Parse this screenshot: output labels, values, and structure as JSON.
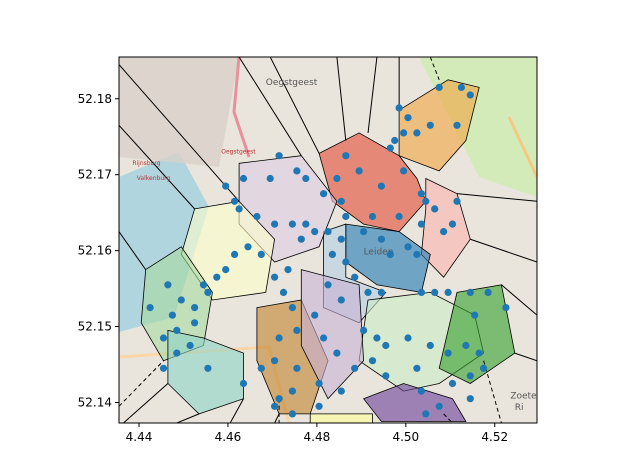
{
  "chart_data": {
    "type": "scatter",
    "title": "",
    "xlabel": "",
    "ylabel": "",
    "xlim": [
      4.4355,
      4.5295
    ],
    "ylim": [
      52.1373,
      52.1855
    ],
    "x_ticks": [
      "4.44",
      "4.46",
      "4.48",
      "4.50",
      "4.52"
    ],
    "x_tick_values": [
      4.44,
      4.46,
      4.48,
      4.5,
      4.52
    ],
    "y_ticks": [
      "52.14",
      "52.15",
      "52.16",
      "52.17",
      "52.18"
    ],
    "y_tick_values": [
      52.14,
      52.15,
      52.16,
      52.17,
      52.18
    ],
    "grid": false,
    "point_color": "#1f77b4",
    "map_labels": [
      {
        "text": "Oegstgeest",
        "x": 4.4685,
        "y": 52.1818
      },
      {
        "text": "Oegstgeest",
        "x": 4.4585,
        "y": 52.1728
      },
      {
        "text": "Rijnsburg",
        "x": 4.4385,
        "y": 52.1713
      },
      {
        "text": "Valkenburg",
        "x": 4.4395,
        "y": 52.1693
      },
      {
        "text": "Leiden",
        "x": 4.4905,
        "y": 52.1595
      },
      {
        "text": "Zoete",
        "x": 4.5235,
        "y": 52.1405
      },
      {
        "text": "Ri",
        "x": 4.5245,
        "y": 52.139
      }
    ],
    "regions": [
      {
        "color": "#f1a340",
        "points": [
          [
            4.4985,
            52.1785
          ],
          [
            4.5095,
            52.1825
          ],
          [
            4.5165,
            52.1815
          ],
          [
            4.5135,
            52.1745
          ],
          [
            4.5075,
            52.1705
          ],
          [
            4.4985,
            52.1725
          ]
        ]
      },
      {
        "color": "#e34a33",
        "points": [
          [
            4.4805,
            52.1728
          ],
          [
            4.4895,
            52.1755
          ],
          [
            4.4985,
            52.1725
          ],
          [
            4.5025,
            52.1695
          ],
          [
            4.5045,
            52.1665
          ],
          [
            4.4985,
            52.1625
          ],
          [
            4.4905,
            52.1635
          ],
          [
            4.4835,
            52.1665
          ]
        ]
      },
      {
        "color": "#fbb4ae",
        "points": [
          [
            4.5045,
            52.1695
          ],
          [
            4.5115,
            52.1675
          ],
          [
            4.5145,
            52.1615
          ],
          [
            4.5085,
            52.1565
          ],
          [
            4.5035,
            52.1595
          ],
          [
            4.5045,
            52.1655
          ]
        ]
      },
      {
        "color": "#1f78b4",
        "points": [
          [
            4.4865,
            52.1635
          ],
          [
            4.4985,
            52.1625
          ],
          [
            4.5055,
            52.1595
          ],
          [
            4.5035,
            52.1545
          ],
          [
            4.4935,
            52.1555
          ],
          [
            4.4865,
            52.1585
          ]
        ]
      },
      {
        "color": "#b3cde3",
        "points": [
          [
            4.4815,
            52.1625
          ],
          [
            4.4865,
            52.1635
          ],
          [
            4.4865,
            52.1565
          ],
          [
            4.4955,
            52.1545
          ],
          [
            4.4895,
            52.1505
          ],
          [
            4.4815,
            52.1525
          ]
        ]
      },
      {
        "color": "#ccebc5",
        "points": [
          [
            4.4915,
            52.1535
          ],
          [
            4.5055,
            52.1545
          ],
          [
            4.5155,
            52.1515
          ],
          [
            4.5175,
            52.1465
          ],
          [
            4.5075,
            52.1425
          ],
          [
            4.4995,
            52.1415
          ],
          [
            4.4895,
            52.1455
          ]
        ]
      },
      {
        "color": "#33a02c",
        "points": [
          [
            4.5115,
            52.1545
          ],
          [
            4.5215,
            52.1555
          ],
          [
            4.5245,
            52.1465
          ],
          [
            4.5145,
            52.1425
          ],
          [
            4.5075,
            52.1445
          ]
        ]
      },
      {
        "color": "#6a3d9a",
        "points": [
          [
            4.4905,
            52.1405
          ],
          [
            4.4995,
            52.1425
          ],
          [
            4.5105,
            52.1405
          ],
          [
            4.5135,
            52.1375
          ],
          [
            4.4945,
            52.1375
          ]
        ]
      },
      {
        "color": "#decbe4",
        "points": [
          [
            4.4625,
            52.1715
          ],
          [
            4.4765,
            52.1725
          ],
          [
            4.4845,
            52.1665
          ],
          [
            4.4805,
            52.1605
          ],
          [
            4.4705,
            52.1585
          ],
          [
            4.4625,
            52.1635
          ]
        ]
      },
      {
        "color": "#ffffcc",
        "points": [
          [
            4.4525,
            52.1655
          ],
          [
            4.4625,
            52.1665
          ],
          [
            4.4705,
            52.1615
          ],
          [
            4.4685,
            52.1545
          ],
          [
            4.4565,
            52.1535
          ],
          [
            4.4495,
            52.1595
          ]
        ]
      },
      {
        "color": "#a6dba0",
        "points": [
          [
            4.4415,
            52.1575
          ],
          [
            4.4495,
            52.1605
          ],
          [
            4.4565,
            52.1545
          ],
          [
            4.4545,
            52.1475
          ],
          [
            4.4455,
            52.1455
          ],
          [
            4.4405,
            52.1505
          ]
        ]
      },
      {
        "color": "#8dd3c7",
        "points": [
          [
            4.4465,
            52.1495
          ],
          [
            4.4545,
            52.1485
          ],
          [
            4.4635,
            52.1465
          ],
          [
            4.4635,
            52.1405
          ],
          [
            4.4535,
            52.1385
          ],
          [
            4.4465,
            52.1425
          ]
        ]
      },
      {
        "color": "#bf812d",
        "points": [
          [
            4.4665,
            52.1525
          ],
          [
            4.4765,
            52.1535
          ],
          [
            4.4825,
            52.1455
          ],
          [
            4.4785,
            52.1385
          ],
          [
            4.4715,
            52.1385
          ],
          [
            4.4665,
            52.1455
          ]
        ]
      },
      {
        "color": "#cab2d6",
        "points": [
          [
            4.4765,
            52.1575
          ],
          [
            4.4895,
            52.1555
          ],
          [
            4.4905,
            52.1455
          ],
          [
            4.4825,
            52.1405
          ],
          [
            4.4765,
            52.1475
          ]
        ]
      },
      {
        "color": "#ffff99",
        "points": [
          [
            4.4785,
            52.1385
          ],
          [
            4.4925,
            52.1385
          ],
          [
            4.4925,
            52.1373
          ],
          [
            4.4785,
            52.1373
          ]
        ]
      }
    ],
    "boundaries": [
      [
        [
          4.4355,
          52.1845
        ],
        [
          4.4625,
          52.1665
        ]
      ],
      [
        [
          4.4355,
          52.1765
        ],
        [
          4.4525,
          52.1655
        ]
      ],
      [
        [
          4.4355,
          52.1625
        ],
        [
          4.4415,
          52.1575
        ]
      ],
      [
        [
          4.4625,
          52.1855
        ],
        [
          4.4765,
          52.1725
        ]
      ],
      [
        [
          4.4695,
          52.1855
        ],
        [
          4.4805,
          52.1728
        ]
      ],
      [
        [
          4.4845,
          52.1855
        ],
        [
          4.4865,
          52.1745
        ]
      ],
      [
        [
          4.4935,
          52.1855
        ],
        [
          4.4915,
          52.1755
        ]
      ],
      [
        [
          4.4985,
          52.1855
        ],
        [
          4.4985,
          52.1785
        ]
      ],
      [
        [
          4.5295,
          52.1665
        ],
        [
          4.5115,
          52.1675
        ]
      ],
      [
        [
          4.5295,
          52.1585
        ],
        [
          4.5145,
          52.1615
        ]
      ],
      [
        [
          4.5295,
          52.1515
        ],
        [
          4.5215,
          52.1555
        ]
      ],
      [
        [
          4.4365,
          52.1373
        ],
        [
          4.4465,
          52.1425
        ]
      ],
      [
        [
          4.4485,
          52.1373
        ],
        [
          4.4535,
          52.1385
        ]
      ],
      [
        [
          4.4605,
          52.1373
        ],
        [
          4.4635,
          52.1405
        ]
      ],
      [
        [
          4.4705,
          52.1373
        ],
        [
          4.4715,
          52.1385
        ]
      ],
      [
        [
          4.5295,
          52.1455
        ],
        [
          4.5245,
          52.1465
        ]
      ]
    ],
    "dashed_boundaries": [
      [
        [
          4.4355,
          52.1395
        ],
        [
          4.4455,
          52.1455
        ]
      ],
      [
        [
          4.4715,
          52.1405
        ],
        [
          4.4715,
          52.1373
        ]
      ],
      [
        [
          4.5055,
          52.1855
        ],
        [
          4.5075,
          52.1825
        ]
      ],
      [
        [
          4.5175,
          52.1455
        ],
        [
          4.5215,
          52.1373
        ]
      ],
      [
        [
          4.5085,
          52.1385
        ],
        [
          4.5105,
          52.1373
        ]
      ]
    ],
    "points": [
      [
        4.4985,
        52.1788
      ],
      [
        4.5075,
        52.1815
      ],
      [
        4.5125,
        52.1815
      ],
      [
        4.5145,
        52.1805
      ],
      [
        4.5005,
        52.1775
      ],
      [
        4.5025,
        52.1755
      ],
      [
        4.5055,
        52.1765
      ],
      [
        4.4995,
        52.1755
      ],
      [
        4.5115,
        52.1765
      ],
      [
        4.4975,
        52.1745
      ],
      [
        4.4965,
        52.1735
      ],
      [
        4.4865,
        52.1725
      ],
      [
        4.4845,
        52.1695
      ],
      [
        4.4895,
        52.1705
      ],
      [
        4.4855,
        52.1665
      ],
      [
        4.4945,
        52.1685
      ],
      [
        4.4995,
        52.1705
      ],
      [
        4.5035,
        52.1675
      ],
      [
        4.5045,
        52.1665
      ],
      [
        4.4925,
        52.1645
      ],
      [
        4.4985,
        52.1645
      ],
      [
        4.5035,
        52.1635
      ],
      [
        4.5065,
        52.1655
      ],
      [
        4.5115,
        52.1665
      ],
      [
        4.5105,
        52.1635
      ],
      [
        4.5085,
        52.1625
      ],
      [
        4.4715,
        52.1725
      ],
      [
        4.4755,
        52.1705
      ],
      [
        4.4775,
        52.1695
      ],
      [
        4.4815,
        52.1675
      ],
      [
        4.4695,
        52.1695
      ],
      [
        4.4635,
        52.1695
      ],
      [
        4.4595,
        52.1685
      ],
      [
        4.4615,
        52.1665
      ],
      [
        4.4625,
        52.1655
      ],
      [
        4.4665,
        52.1645
      ],
      [
        4.4705,
        52.1635
      ],
      [
        4.4745,
        52.1635
      ],
      [
        4.4775,
        52.1635
      ],
      [
        4.4795,
        52.1625
      ],
      [
        4.4765,
        52.1615
      ],
      [
        4.4825,
        52.1625
      ],
      [
        4.4865,
        52.1645
      ],
      [
        4.4855,
        52.1615
      ],
      [
        4.4905,
        52.1625
      ],
      [
        4.4945,
        52.1615
      ],
      [
        4.4965,
        52.1595
      ],
      [
        4.5005,
        52.1605
      ],
      [
        4.5025,
        52.1595
      ],
      [
        4.4835,
        52.1595
      ],
      [
        4.4865,
        52.1585
      ],
      [
        4.4885,
        52.1565
      ],
      [
        4.4915,
        52.1545
      ],
      [
        4.4945,
        52.1545
      ],
      [
        4.5035,
        52.1545
      ],
      [
        4.5065,
        52.1545
      ],
      [
        4.5095,
        52.1545
      ],
      [
        4.5145,
        52.1545
      ],
      [
        4.5185,
        52.1545
      ],
      [
        4.5225,
        52.1525
      ],
      [
        4.5155,
        52.1515
      ],
      [
        4.4825,
        52.1555
      ],
      [
        4.4855,
        52.1535
      ],
      [
        4.4905,
        52.1495
      ],
      [
        4.4935,
        52.1485
      ],
      [
        4.4955,
        52.1475
      ],
      [
        4.5005,
        52.1485
      ],
      [
        4.5055,
        52.1475
      ],
      [
        4.5095,
        52.1465
      ],
      [
        4.5135,
        52.1475
      ],
      [
        4.5165,
        52.1465
      ],
      [
        4.5175,
        52.1445
      ],
      [
        4.5145,
        52.1435
      ],
      [
        4.4955,
        52.1435
      ],
      [
        4.5025,
        52.1445
      ],
      [
        4.5105,
        52.1425
      ],
      [
        4.5145,
        52.1405
      ],
      [
        4.5035,
        52.1415
      ],
      [
        4.5045,
        52.1385
      ],
      [
        4.5075,
        52.1395
      ],
      [
        4.4645,
        52.1605
      ],
      [
        4.4615,
        52.1595
      ],
      [
        4.4595,
        52.1575
      ],
      [
        4.4575,
        52.1565
      ],
      [
        4.4545,
        52.1555
      ],
      [
        4.4555,
        52.1545
      ],
      [
        4.4525,
        52.1525
      ],
      [
        4.4495,
        52.1535
      ],
      [
        4.4525,
        52.1505
      ],
      [
        4.4475,
        52.1515
      ],
      [
        4.4425,
        52.1525
      ],
      [
        4.4465,
        52.1555
      ],
      [
        4.4485,
        52.1495
      ],
      [
        4.4455,
        52.1485
      ],
      [
        4.4515,
        52.1475
      ],
      [
        4.4675,
        52.1595
      ],
      [
        4.4705,
        52.1565
      ],
      [
        4.4735,
        52.1575
      ],
      [
        4.4725,
        52.1545
      ],
      [
        4.4745,
        52.1525
      ],
      [
        4.4795,
        52.1515
      ],
      [
        4.4815,
        52.1485
      ],
      [
        4.4845,
        52.1465
      ],
      [
        4.4755,
        52.1495
      ],
      [
        4.4715,
        52.1485
      ],
      [
        4.4705,
        52.1455
      ],
      [
        4.4675,
        52.1445
      ],
      [
        4.4755,
        52.1445
      ],
      [
        4.4805,
        52.1425
      ],
      [
        4.4745,
        52.1415
      ],
      [
        4.4715,
        52.1405
      ],
      [
        4.4635,
        52.1425
      ],
      [
        4.4555,
        52.1445
      ],
      [
        4.4485,
        52.1465
      ],
      [
        4.4455,
        52.1445
      ],
      [
        4.4805,
        52.1395
      ],
      [
        4.4855,
        52.1415
      ],
      [
        4.4885,
        52.1445
      ],
      [
        4.4925,
        52.1455
      ],
      [
        4.4745,
        52.1385
      ],
      [
        4.4705,
        52.1395
      ]
    ]
  }
}
